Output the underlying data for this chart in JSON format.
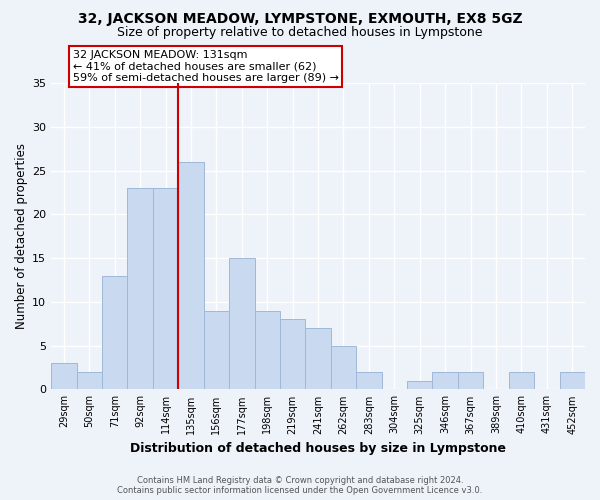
{
  "title1": "32, JACKSON MEADOW, LYMPSTONE, EXMOUTH, EX8 5GZ",
  "title2": "Size of property relative to detached houses in Lympstone",
  "xlabel": "Distribution of detached houses by size in Lympstone",
  "ylabel": "Number of detached properties",
  "bin_labels": [
    "29sqm",
    "50sqm",
    "71sqm",
    "92sqm",
    "114sqm",
    "135sqm",
    "156sqm",
    "177sqm",
    "198sqm",
    "219sqm",
    "241sqm",
    "262sqm",
    "283sqm",
    "304sqm",
    "325sqm",
    "346sqm",
    "367sqm",
    "389sqm",
    "410sqm",
    "431sqm",
    "452sqm"
  ],
  "bar_heights": [
    3,
    2,
    13,
    23,
    23,
    26,
    9,
    15,
    9,
    8,
    7,
    5,
    2,
    0,
    1,
    2,
    2,
    0,
    2,
    0,
    2
  ],
  "bar_color": "#c8d9f0",
  "bar_edge_color": "#a0b8d8",
  "vline_index": 5,
  "vline_color": "#cc0000",
  "annotation_title": "32 JACKSON MEADOW: 131sqm",
  "annotation_line1": "← 41% of detached houses are smaller (62)",
  "annotation_line2": "59% of semi-detached houses are larger (89) →",
  "annotation_box_color": "#ffffff",
  "annotation_box_edge_color": "#cc0000",
  "ylim": [
    0,
    35
  ],
  "yticks": [
    0,
    5,
    10,
    15,
    20,
    25,
    30,
    35
  ],
  "footer1": "Contains HM Land Registry data © Crown copyright and database right 2024.",
  "footer2": "Contains public sector information licensed under the Open Government Licence v3.0.",
  "bg_color": "#eef2f9",
  "grid_color": "#ffffff",
  "title1_fontsize": 10,
  "title2_fontsize": 9,
  "xlabel_fontsize": 9,
  "ylabel_fontsize": 8.5,
  "annotation_fontsize": 8,
  "footer_fontsize": 6
}
